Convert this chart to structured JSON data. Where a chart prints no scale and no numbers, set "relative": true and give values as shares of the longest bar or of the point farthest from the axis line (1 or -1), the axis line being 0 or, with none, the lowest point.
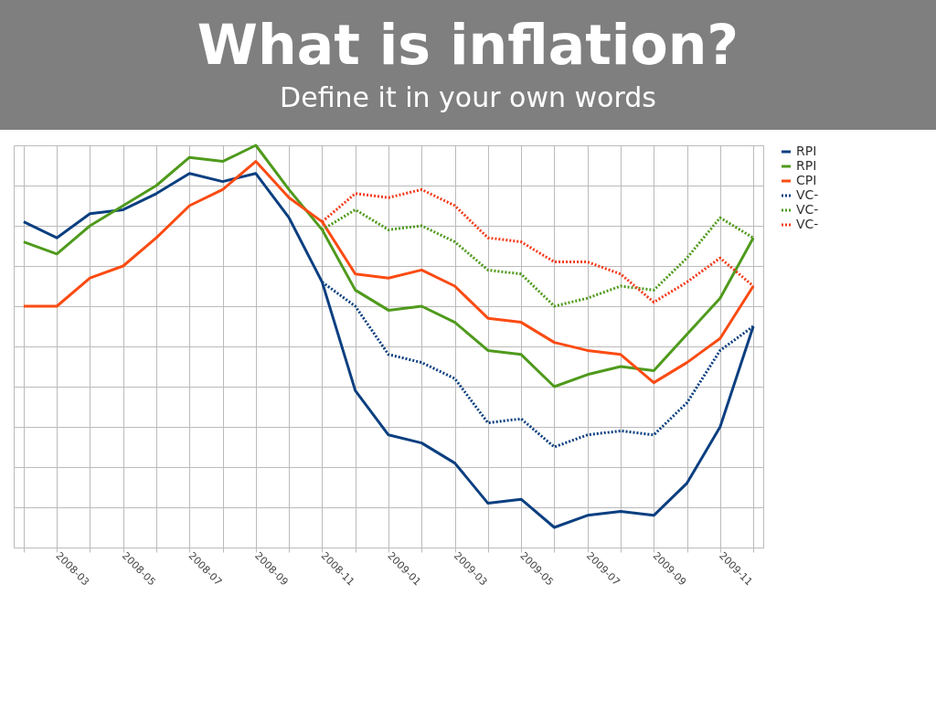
{
  "chart_data": {
    "type": "line",
    "title": "What is inflation?",
    "subtitle": "Define it in your own words",
    "relative": true,
    "grid": true,
    "legend": "right",
    "marker": "none",
    "categories": [
      null,
      "2008-03",
      null,
      "2008-05",
      null,
      "2008-07",
      null,
      "2008-09",
      null,
      "2008-11",
      null,
      "2009-01",
      null,
      "2009-03",
      null,
      "2009-05",
      null,
      "2009-07",
      null,
      "2009-09",
      null,
      "2009-11",
      null
    ],
    "series": [
      {
        "name": "RPI",
        "color": "#0b3f80",
        "line_style": "solid",
        "values": [
          0.81,
          0.77,
          0.83,
          0.84,
          0.88,
          0.93,
          0.91,
          0.93,
          0.82,
          0.66,
          0.39,
          0.28,
          0.26,
          0.21,
          0.11,
          0.12,
          0.05,
          0.08,
          0.09,
          0.08,
          0.16,
          0.3,
          0.55
        ]
      },
      {
        "name": "RPI",
        "color": "#4f9a1c",
        "line_style": "solid",
        "values": [
          0.76,
          0.73,
          0.8,
          0.85,
          0.9,
          0.97,
          0.96,
          1.0,
          0.89,
          0.79,
          0.64,
          0.59,
          0.6,
          0.56,
          0.49,
          0.48,
          0.4,
          0.43,
          0.45,
          0.44,
          0.53,
          0.62,
          0.77
        ]
      },
      {
        "name": "CPI",
        "color": "#fb4b12",
        "line_style": "solid",
        "values": [
          0.6,
          0.6,
          0.67,
          0.7,
          0.77,
          0.85,
          0.89,
          0.96,
          0.87,
          0.81,
          0.68,
          0.67,
          0.69,
          0.65,
          0.57,
          0.56,
          0.51,
          0.49,
          0.48,
          0.41,
          0.46,
          0.52,
          0.65
        ]
      },
      {
        "name": "VC-",
        "color": "#0b3f80",
        "line_style": "dotted",
        "values": [
          null,
          null,
          null,
          null,
          null,
          null,
          null,
          null,
          null,
          0.66,
          0.6,
          0.48,
          0.46,
          0.42,
          0.31,
          0.32,
          0.25,
          0.28,
          0.29,
          0.28,
          0.36,
          0.49,
          0.55
        ]
      },
      {
        "name": "VC-",
        "color": "#4f9a1c",
        "line_style": "dotted",
        "values": [
          null,
          null,
          null,
          null,
          null,
          null,
          null,
          null,
          null,
          0.79,
          0.84,
          0.79,
          0.8,
          0.76,
          0.69,
          0.68,
          0.6,
          0.62,
          0.65,
          0.64,
          0.72,
          0.82,
          0.77
        ]
      },
      {
        "name": "VC-",
        "color": "#f23c1c",
        "line_style": "dotted",
        "values": [
          null,
          null,
          null,
          null,
          null,
          null,
          null,
          null,
          null,
          0.81,
          0.88,
          0.87,
          0.89,
          0.85,
          0.77,
          0.76,
          0.71,
          0.71,
          0.68,
          0.61,
          0.66,
          0.72,
          0.65
        ]
      }
    ]
  }
}
